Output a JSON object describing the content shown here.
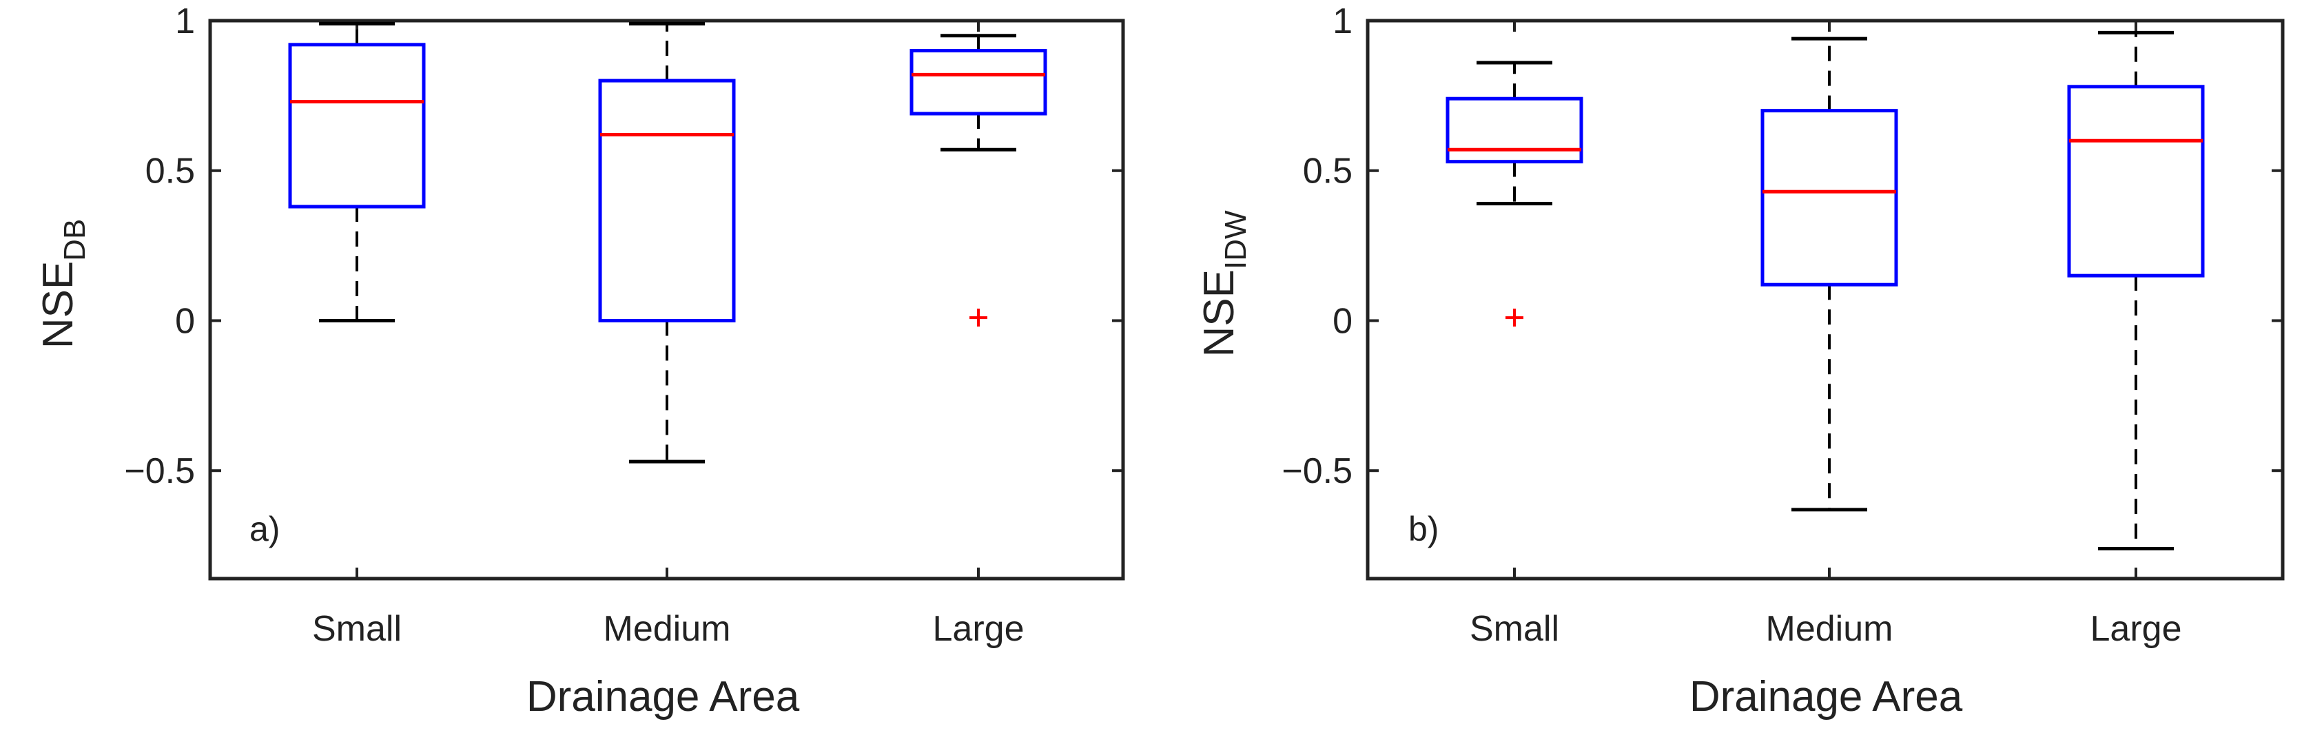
{
  "chart_data": [
    {
      "type": "box",
      "panel_label": "a)",
      "xlabel": "Drainage Area",
      "ylabel_main": "NSE",
      "ylabel_sub": "DB",
      "ylim": [
        -0.86,
        1
      ],
      "yticks": [
        -0.5,
        0,
        0.5,
        1
      ],
      "ytick_labels": [
        "−0.5",
        "0",
        "0.5",
        "1"
      ],
      "categories": [
        "Small",
        "Medium",
        "Large"
      ],
      "boxes": [
        {
          "whisker_low": 0.0,
          "q1": 0.38,
          "median": 0.73,
          "q3": 0.92,
          "whisker_high": 0.99,
          "outliers": []
        },
        {
          "whisker_low": -0.47,
          "q1": 0.0,
          "median": 0.62,
          "q3": 0.8,
          "whisker_high": 0.99,
          "outliers": []
        },
        {
          "whisker_low": 0.57,
          "q1": 0.69,
          "median": 0.82,
          "q3": 0.9,
          "whisker_high": 0.95,
          "outliers": [
            0.01
          ]
        }
      ],
      "colors": {
        "box": "#0000ff",
        "median": "#ff0000",
        "whisker": "#000000",
        "outlier": "#ff0000"
      }
    },
    {
      "type": "box",
      "panel_label": "b)",
      "xlabel": "Drainage Area",
      "ylabel_main": "NSE",
      "ylabel_sub": "IDW",
      "ylim": [
        -0.86,
        1
      ],
      "yticks": [
        -0.5,
        0,
        0.5,
        1
      ],
      "ytick_labels": [
        "−0.5",
        "0",
        "0.5",
        "1"
      ],
      "categories": [
        "Small",
        "Medium",
        "Large"
      ],
      "boxes": [
        {
          "whisker_low": 0.39,
          "q1": 0.53,
          "median": 0.57,
          "q3": 0.74,
          "whisker_high": 0.86,
          "outliers": [
            0.01
          ]
        },
        {
          "whisker_low": -0.63,
          "q1": 0.12,
          "median": 0.43,
          "q3": 0.7,
          "whisker_high": 0.94,
          "outliers": []
        },
        {
          "whisker_low": -0.76,
          "q1": 0.15,
          "median": 0.6,
          "q3": 0.78,
          "whisker_high": 0.96,
          "outliers": []
        }
      ],
      "colors": {
        "box": "#0000ff",
        "median": "#ff0000",
        "whisker": "#000000",
        "outlier": "#ff0000"
      }
    }
  ]
}
